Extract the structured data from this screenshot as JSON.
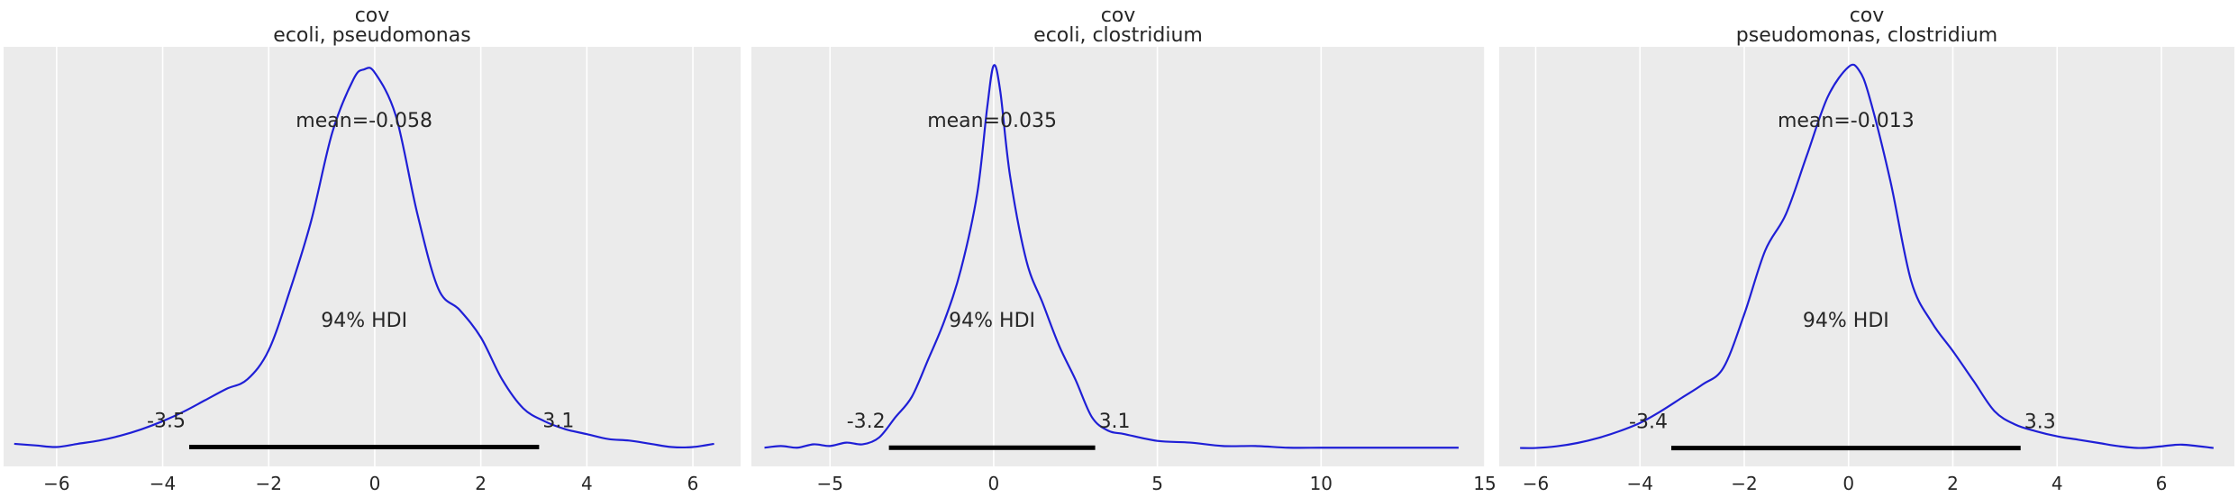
{
  "chart_data": [
    {
      "type": "line",
      "title_lines": [
        "cov",
        "ecoli, pseudomonas"
      ],
      "xlim": [
        -7.0,
        6.9
      ],
      "ylim": [
        -0.012,
        0.248
      ],
      "xticks": [
        -6,
        -4,
        -2,
        0,
        2,
        4,
        6
      ],
      "xtick_labels": [
        "−6",
        "−4",
        "−2",
        "0",
        "2",
        "4",
        "6"
      ],
      "grid": true,
      "colors": {
        "curve": "#1f1fd6",
        "hdi": "#000000",
        "background": "#ebebeb",
        "grid": "#ffffff"
      },
      "x": [
        -6.8,
        -6.4,
        -6.0,
        -5.6,
        -5.2,
        -4.8,
        -4.4,
        -4.0,
        -3.6,
        -3.2,
        -2.8,
        -2.4,
        -2.0,
        -1.6,
        -1.2,
        -0.8,
        -0.4,
        -0.2,
        0.0,
        0.4,
        0.8,
        1.2,
        1.6,
        2.0,
        2.4,
        2.8,
        3.2,
        3.6,
        4.0,
        4.4,
        4.8,
        5.2,
        5.6,
        6.0,
        6.4
      ],
      "y": [
        0.002,
        0.001,
        0.0,
        0.002,
        0.004,
        0.007,
        0.011,
        0.016,
        0.022,
        0.029,
        0.036,
        0.042,
        0.06,
        0.097,
        0.14,
        0.195,
        0.228,
        0.234,
        0.232,
        0.205,
        0.145,
        0.098,
        0.085,
        0.068,
        0.042,
        0.024,
        0.016,
        0.011,
        0.008,
        0.005,
        0.004,
        0.002,
        0.0,
        0.0,
        0.002
      ],
      "mean_label": "mean=-0.058",
      "hdi_label": "94% HDI",
      "hdi": [
        -3.5,
        3.1
      ],
      "hdi_low_label": "-3.5",
      "hdi_high_label": "3.1"
    },
    {
      "type": "line",
      "title_lines": [
        "cov",
        "ecoli, clostridium"
      ],
      "xlim": [
        -7.4,
        15.0
      ],
      "ylim": [
        -0.011,
        0.236
      ],
      "xticks": [
        -5,
        0,
        5,
        10,
        15
      ],
      "xtick_labels": [
        "−5",
        "0",
        "5",
        "10",
        "15"
      ],
      "grid": true,
      "colors": {
        "curve": "#1f1fd6",
        "hdi": "#000000",
        "background": "#ebebeb",
        "grid": "#ffffff"
      },
      "x": [
        -7.0,
        -6.5,
        -6.0,
        -5.5,
        -5.0,
        -4.5,
        -4.0,
        -3.5,
        -3.0,
        -2.5,
        -2.0,
        -1.5,
        -1.0,
        -0.5,
        -0.2,
        0.0,
        0.2,
        0.5,
        1.0,
        1.5,
        2.0,
        2.5,
        3.0,
        3.5,
        4.0,
        5.0,
        6.0,
        7.0,
        8.0,
        9.0,
        10.0,
        11.0,
        12.0,
        13.0,
        14.2
      ],
      "y": [
        0.0,
        0.001,
        0.0,
        0.002,
        0.001,
        0.003,
        0.002,
        0.006,
        0.018,
        0.03,
        0.052,
        0.075,
        0.105,
        0.15,
        0.2,
        0.225,
        0.21,
        0.16,
        0.11,
        0.085,
        0.06,
        0.04,
        0.018,
        0.01,
        0.008,
        0.004,
        0.003,
        0.001,
        0.001,
        0.0,
        0.0,
        0.0,
        0.0,
        0.0,
        0.0
      ],
      "mean_label": "mean=0.035",
      "hdi_label": "94% HDI",
      "hdi": [
        -3.2,
        3.1
      ],
      "hdi_low_label": "-3.2",
      "hdi_high_label": "3.1"
    },
    {
      "type": "line",
      "title_lines": [
        "cov",
        "pseudomonas, clostridium"
      ],
      "xlim": [
        -6.7,
        7.4
      ],
      "ylim": [
        -0.011,
        0.24
      ],
      "xticks": [
        -6,
        -4,
        -2,
        0,
        2,
        4,
        6
      ],
      "xtick_labels": [
        "−6",
        "−4",
        "−2",
        "0",
        "2",
        "4",
        "6"
      ],
      "grid": true,
      "colors": {
        "curve": "#1f1fd6",
        "hdi": "#000000",
        "background": "#ebebeb",
        "grid": "#ffffff"
      },
      "x": [
        -6.3,
        -6.0,
        -5.6,
        -5.2,
        -4.8,
        -4.4,
        -4.0,
        -3.6,
        -3.2,
        -2.8,
        -2.4,
        -2.0,
        -1.6,
        -1.2,
        -0.8,
        -0.4,
        0.0,
        0.2,
        0.4,
        0.8,
        1.2,
        1.6,
        2.0,
        2.4,
        2.8,
        3.2,
        3.6,
        4.0,
        4.4,
        4.8,
        5.2,
        5.6,
        6.0,
        6.4,
        7.0
      ],
      "y": [
        0.0,
        0.0,
        0.001,
        0.003,
        0.006,
        0.01,
        0.015,
        0.022,
        0.03,
        0.038,
        0.048,
        0.08,
        0.118,
        0.14,
        0.175,
        0.21,
        0.228,
        0.226,
        0.21,
        0.16,
        0.1,
        0.075,
        0.058,
        0.04,
        0.022,
        0.014,
        0.01,
        0.007,
        0.005,
        0.003,
        0.001,
        0.0,
        0.001,
        0.002,
        0.0
      ],
      "mean_label": "mean=-0.013",
      "hdi_label": "94% HDI",
      "hdi": [
        -3.4,
        3.3
      ],
      "hdi_low_label": "-3.4",
      "hdi_high_label": "3.3"
    }
  ]
}
